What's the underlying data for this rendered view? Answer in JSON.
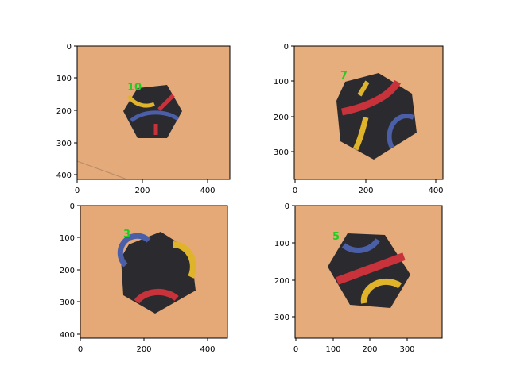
{
  "colors": {
    "background_tan": "#e3a878",
    "tile_black": "#2b2b2f",
    "yellow": "#e0b42a",
    "red": "#c8323a",
    "blue": "#4b5fa8",
    "annotation_green": "#22cc22"
  },
  "panels": [
    {
      "id": "top-left",
      "label": "10",
      "x_ticks": [
        "0",
        "200",
        "400"
      ],
      "y_ticks": [
        "0",
        "100",
        "200",
        "300",
        "400"
      ],
      "xlim": [
        0,
        460
      ],
      "ylim": [
        0,
        410
      ]
    },
    {
      "id": "top-right",
      "label": "7",
      "x_ticks": [
        "0",
        "200",
        "400"
      ],
      "y_ticks": [
        "0",
        "100",
        "200",
        "300"
      ],
      "xlim": [
        0,
        420
      ],
      "ylim": [
        0,
        380
      ]
    },
    {
      "id": "bottom-left",
      "label": "3",
      "x_ticks": [
        "0",
        "200",
        "400"
      ],
      "y_ticks": [
        "0",
        "100",
        "200",
        "300",
        "400"
      ],
      "xlim": [
        0,
        460
      ],
      "ylim": [
        0,
        415
      ]
    },
    {
      "id": "bottom-right",
      "label": "5",
      "x_ticks": [
        "0",
        "100",
        "200",
        "300"
      ],
      "y_ticks": [
        "0",
        "100",
        "200",
        "300"
      ],
      "xlim": [
        0,
        395
      ],
      "ylim": [
        0,
        365
      ]
    }
  ]
}
